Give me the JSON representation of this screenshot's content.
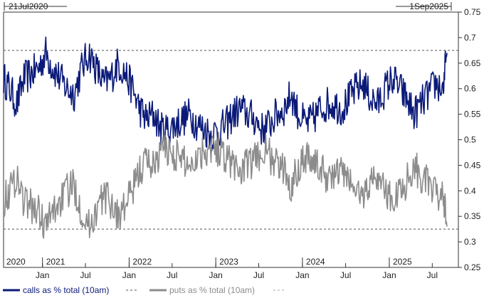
{
  "chart_data": {
    "type": "line",
    "title": "",
    "xlabel": "",
    "ylabel": "",
    "date_range": {
      "start_label": "21Jul2020",
      "end_label": "1Sep2025",
      "start": "2020-07-21",
      "end": "2025-09-01"
    },
    "ylim": [
      0.25,
      0.75
    ],
    "y_ticks": [
      "0.25",
      "0.3",
      "0.35",
      "0.4",
      "0.45",
      "0.5",
      "0.55",
      "0.6",
      "0.65",
      "0.7",
      "0.75"
    ],
    "x_month_ticks": [
      {
        "label": "Jan",
        "date": "2021-01-01"
      },
      {
        "label": "Jul",
        "date": "2021-07-01"
      },
      {
        "label": "Jan",
        "date": "2022-01-01"
      },
      {
        "label": "Jul",
        "date": "2022-07-01"
      },
      {
        "label": "Jan",
        "date": "2023-01-01"
      },
      {
        "label": "Jul",
        "date": "2023-07-01"
      },
      {
        "label": "Jan",
        "date": "2024-01-01"
      },
      {
        "label": "Jul",
        "date": "2024-07-01"
      },
      {
        "label": "Jan",
        "date": "2025-01-01"
      },
      {
        "label": "Jul",
        "date": "2025-07-01"
      }
    ],
    "x_year_labels": [
      {
        "label": "2020",
        "date": "2020-07-21"
      },
      {
        "label": "2021",
        "date": "2021-01-01"
      },
      {
        "label": "2022",
        "date": "2022-01-01"
      },
      {
        "label": "2023",
        "date": "2023-01-01"
      },
      {
        "label": "2024",
        "date": "2024-01-01"
      },
      {
        "label": "2025",
        "date": "2025-01-01"
      }
    ],
    "reference_lines": [
      0.675,
      0.325
    ],
    "grid": false,
    "legend": "bottom",
    "colors": {
      "calls": "#0b1a78",
      "puts": "#8c8c8c",
      "reference": "#555555"
    },
    "series": [
      {
        "name": "calls as % total (10am)",
        "color": "#0b1a78",
        "x": [
          "2020-07-21",
          "2020-08-15",
          "2020-09-15",
          "2020-10-15",
          "2020-11-15",
          "2020-12-15",
          "2021-01-15",
          "2021-02-15",
          "2021-03-15",
          "2021-04-15",
          "2021-05-15",
          "2021-06-15",
          "2021-07-15",
          "2021-08-15",
          "2021-09-15",
          "2021-10-15",
          "2021-11-15",
          "2021-12-15",
          "2022-01-15",
          "2022-02-15",
          "2022-03-15",
          "2022-04-15",
          "2022-05-15",
          "2022-06-15",
          "2022-07-15",
          "2022-08-15",
          "2022-09-15",
          "2022-10-15",
          "2022-11-15",
          "2022-12-15",
          "2023-01-15",
          "2023-02-15",
          "2023-03-15",
          "2023-04-15",
          "2023-05-15",
          "2023-06-15",
          "2023-07-15",
          "2023-08-15",
          "2023-09-15",
          "2023-10-15",
          "2023-11-15",
          "2023-12-15",
          "2024-01-15",
          "2024-02-15",
          "2024-03-15",
          "2024-04-15",
          "2024-05-15",
          "2024-06-15",
          "2024-07-15",
          "2024-08-15",
          "2024-09-15",
          "2024-10-15",
          "2024-11-15",
          "2024-12-15",
          "2025-01-15",
          "2025-02-15",
          "2025-03-15",
          "2025-04-15",
          "2025-05-15",
          "2025-06-15",
          "2025-07-15",
          "2025-08-15",
          "2025-09-01"
        ],
        "values": [
          0.62,
          0.6,
          0.57,
          0.62,
          0.63,
          0.64,
          0.67,
          0.64,
          0.62,
          0.6,
          0.59,
          0.64,
          0.67,
          0.64,
          0.61,
          0.62,
          0.65,
          0.63,
          0.6,
          0.56,
          0.54,
          0.55,
          0.52,
          0.52,
          0.53,
          0.54,
          0.55,
          0.53,
          0.52,
          0.51,
          0.52,
          0.53,
          0.55,
          0.56,
          0.55,
          0.54,
          0.52,
          0.53,
          0.55,
          0.56,
          0.59,
          0.55,
          0.53,
          0.54,
          0.56,
          0.57,
          0.57,
          0.56,
          0.58,
          0.6,
          0.61,
          0.58,
          0.57,
          0.6,
          0.62,
          0.6,
          0.58,
          0.55,
          0.57,
          0.59,
          0.61,
          0.6,
          0.67
        ]
      },
      {
        "name": "puts as % total (10am)",
        "color": "#8c8c8c",
        "x": [
          "2020-07-21",
          "2020-08-15",
          "2020-09-15",
          "2020-10-15",
          "2020-11-15",
          "2020-12-15",
          "2021-01-15",
          "2021-02-15",
          "2021-03-15",
          "2021-04-15",
          "2021-05-15",
          "2021-06-15",
          "2021-07-15",
          "2021-08-15",
          "2021-09-15",
          "2021-10-15",
          "2021-11-15",
          "2021-12-15",
          "2022-01-15",
          "2022-02-15",
          "2022-03-15",
          "2022-04-15",
          "2022-05-15",
          "2022-06-15",
          "2022-07-15",
          "2022-08-15",
          "2022-09-15",
          "2022-10-15",
          "2022-11-15",
          "2022-12-15",
          "2023-01-15",
          "2023-02-15",
          "2023-03-15",
          "2023-04-15",
          "2023-05-15",
          "2023-06-15",
          "2023-07-15",
          "2023-08-15",
          "2023-09-15",
          "2023-10-15",
          "2023-11-15",
          "2023-12-15",
          "2024-01-15",
          "2024-02-15",
          "2024-03-15",
          "2024-04-15",
          "2024-05-15",
          "2024-06-15",
          "2024-07-15",
          "2024-08-15",
          "2024-09-15",
          "2024-10-15",
          "2024-11-15",
          "2024-12-15",
          "2025-01-15",
          "2025-02-15",
          "2025-03-15",
          "2025-04-15",
          "2025-05-15",
          "2025-06-15",
          "2025-07-15",
          "2025-08-15",
          "2025-09-01"
        ],
        "values": [
          0.38,
          0.4,
          0.43,
          0.38,
          0.37,
          0.36,
          0.33,
          0.36,
          0.38,
          0.4,
          0.41,
          0.36,
          0.33,
          0.36,
          0.39,
          0.38,
          0.35,
          0.37,
          0.4,
          0.44,
          0.46,
          0.45,
          0.48,
          0.48,
          0.47,
          0.46,
          0.45,
          0.47,
          0.48,
          0.49,
          0.48,
          0.47,
          0.45,
          0.44,
          0.45,
          0.46,
          0.48,
          0.47,
          0.45,
          0.44,
          0.41,
          0.45,
          0.47,
          0.46,
          0.44,
          0.43,
          0.43,
          0.44,
          0.42,
          0.4,
          0.39,
          0.42,
          0.43,
          0.4,
          0.38,
          0.4,
          0.42,
          0.45,
          0.43,
          0.41,
          0.39,
          0.4,
          0.33
        ]
      }
    ]
  }
}
